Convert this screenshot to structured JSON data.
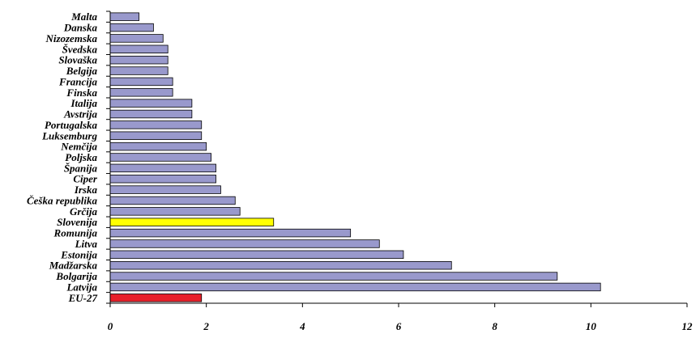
{
  "chart_data": {
    "type": "bar",
    "orientation": "horizontal",
    "categories": [
      "Malta",
      "Danska",
      "Nizozemska",
      "Švedska",
      "Slovaška",
      "Belgija",
      "Francija",
      "Finska",
      "Italija",
      "Avstrija",
      "Portugalska",
      "Luksemburg",
      "Nemčija",
      "Poljska",
      "Španija",
      "Ciper",
      "Irska",
      "Češka republika",
      "Grčija",
      "Slovenija",
      "Romunija",
      "Litva",
      "Estonija",
      "Madžarska",
      "Bolgarija",
      "Latvija",
      "EU-27"
    ],
    "values": [
      0.6,
      0.9,
      1.1,
      1.2,
      1.2,
      1.2,
      1.3,
      1.3,
      1.7,
      1.7,
      1.9,
      1.9,
      2.0,
      2.1,
      2.2,
      2.2,
      2.3,
      2.6,
      2.7,
      3.4,
      5.0,
      5.6,
      6.1,
      7.1,
      9.3,
      10.2,
      1.9
    ],
    "bar_colors": [
      "#9999cc",
      "#9999cc",
      "#9999cc",
      "#9999cc",
      "#9999cc",
      "#9999cc",
      "#9999cc",
      "#9999cc",
      "#9999cc",
      "#9999cc",
      "#9999cc",
      "#9999cc",
      "#9999cc",
      "#9999cc",
      "#9999cc",
      "#9999cc",
      "#9999cc",
      "#9999cc",
      "#9999cc",
      "#ffff00",
      "#9999cc",
      "#9999cc",
      "#9999cc",
      "#9999cc",
      "#9999cc",
      "#9999cc",
      "#e8202a"
    ],
    "xlim": [
      0,
      12
    ],
    "xticks": [
      0,
      2,
      4,
      6,
      8,
      10,
      12
    ],
    "xtick_labels": [
      "0",
      "2",
      "4",
      "6",
      "8",
      "10",
      "12"
    ],
    "title": "",
    "xlabel": "",
    "ylabel": "",
    "grid": false,
    "legend": "none"
  }
}
